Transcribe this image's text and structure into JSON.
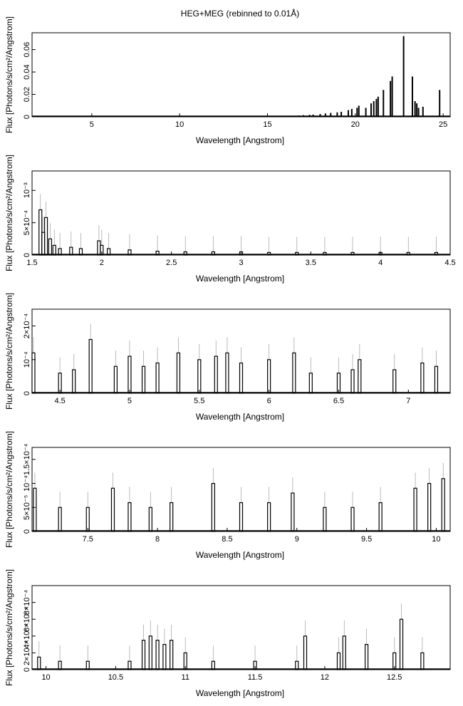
{
  "title": "HEG+MEG (rebinned to 0.01Å)",
  "chart_data": [
    {
      "type": "histogram",
      "xlabel": "Wavelength [Angstrom]",
      "ylabel": "Flux [Photons/s/cm²/Angstrom]",
      "xlim": [
        1.6,
        25.4
      ],
      "ylim": [
        0,
        0.075
      ],
      "x_ticks": [
        {
          "v": 5,
          "label": "5"
        },
        {
          "v": 10,
          "label": "10"
        },
        {
          "v": 15,
          "label": "15"
        },
        {
          "v": 20,
          "label": "20"
        },
        {
          "v": 25,
          "label": "25"
        }
      ],
      "y_ticks": [
        {
          "v": 0,
          "label": "0"
        },
        {
          "v": 0.02,
          "label": "0.02"
        },
        {
          "v": 0.04,
          "label": "0.04"
        },
        {
          "v": 0.06,
          "label": "0.06"
        }
      ],
      "series": [
        {
          "type": "lines",
          "points": [
            [
              15.3,
              0.0006
            ],
            [
              16.0,
              0.0008
            ],
            [
              16.4,
              0.001
            ],
            [
              16.8,
              0.0012
            ],
            [
              17.05,
              0.0015
            ],
            [
              17.4,
              0.0018
            ],
            [
              17.6,
              0.002
            ],
            [
              18.0,
              0.0025
            ],
            [
              18.3,
              0.003
            ],
            [
              18.6,
              0.0035
            ],
            [
              18.97,
              0.004
            ],
            [
              19.2,
              0.0045
            ],
            [
              19.6,
              0.006
            ],
            [
              19.8,
              0.007
            ],
            [
              20.1,
              0.008
            ],
            [
              20.2,
              0.01
            ],
            [
              20.6,
              0.008
            ],
            [
              20.9,
              0.012
            ],
            [
              21.05,
              0.014
            ],
            [
              21.2,
              0.016
            ],
            [
              21.3,
              0.018
            ],
            [
              21.6,
              0.024
            ],
            [
              22.0,
              0.032
            ],
            [
              22.1,
              0.036
            ],
            [
              22.75,
              0.072
            ],
            [
              23.25,
              0.036
            ],
            [
              23.4,
              0.014
            ],
            [
              23.5,
              0.012
            ],
            [
              23.6,
              0.008
            ],
            [
              23.85,
              0.009
            ],
            [
              24.8,
              0.024
            ]
          ]
        }
      ]
    },
    {
      "type": "histogram",
      "xlabel": "Wavelength [Angstrom]",
      "ylabel": "Flux [Photons/s/cm²/Angstrom]",
      "xlim": [
        1.5,
        4.5
      ],
      "ylim": [
        0,
        0.0013
      ],
      "x_ticks": [
        {
          "v": 1.5,
          "label": "1.5"
        },
        {
          "v": 2,
          "label": "2"
        },
        {
          "v": 2.5,
          "label": "2.5"
        },
        {
          "v": 3,
          "label": "3"
        },
        {
          "v": 3.5,
          "label": "3.5"
        },
        {
          "v": 4,
          "label": "4"
        },
        {
          "v": 4.5,
          "label": "4.5"
        }
      ],
      "y_ticks": [
        {
          "v": 0,
          "label": "0"
        },
        {
          "v": 0.0005,
          "label": "5×10⁻⁴"
        },
        {
          "v": 0.001,
          "label": "10⁻³"
        }
      ],
      "series": [
        {
          "type": "bars",
          "points": [
            [
              1.56,
              0.0007
            ],
            [
              1.58,
              0.00035
            ],
            [
              1.6,
              0.00058
            ],
            [
              1.63,
              0.00025
            ],
            [
              1.66,
              0.00015
            ],
            [
              1.7,
              0.0001
            ],
            [
              1.78,
              0.00012
            ],
            [
              1.85,
              0.0001
            ],
            [
              1.98,
              0.00022
            ],
            [
              2.0,
              0.00015
            ],
            [
              2.05,
              0.0001
            ],
            [
              2.2,
              8e-05
            ],
            [
              2.4,
              6e-05
            ],
            [
              2.6,
              5e-05
            ],
            [
              2.8,
              5e-05
            ],
            [
              3.0,
              5e-05
            ],
            [
              3.2,
              4e-05
            ],
            [
              3.4,
              4e-05
            ],
            [
              3.6,
              4e-05
            ],
            [
              3.8,
              4e-05
            ],
            [
              4.0,
              4e-05
            ],
            [
              4.2,
              4e-05
            ],
            [
              4.4,
              4e-05
            ]
          ]
        }
      ]
    },
    {
      "type": "histogram",
      "xlabel": "Wavelength [Angstrom]",
      "ylabel": "Flux [Photons/s/cm²/Angstrom]",
      "xlim": [
        4.3,
        7.3
      ],
      "ylim": [
        0,
        0.00025
      ],
      "x_ticks": [
        {
          "v": 4.5,
          "label": "4.5"
        },
        {
          "v": 5,
          "label": "5"
        },
        {
          "v": 5.5,
          "label": "5.5"
        },
        {
          "v": 6,
          "label": "6"
        },
        {
          "v": 6.5,
          "label": "6.5"
        },
        {
          "v": 7,
          "label": "7"
        }
      ],
      "y_ticks": [
        {
          "v": 0,
          "label": "0"
        },
        {
          "v": 0.0001,
          "label": "10⁻⁴"
        },
        {
          "v": 0.0002,
          "label": "2×10⁻⁴"
        }
      ],
      "series": [
        {
          "type": "bars",
          "points": [
            [
              4.31,
              0.00012
            ],
            [
              4.5,
              6e-05
            ],
            [
              4.6,
              7e-05
            ],
            [
              4.72,
              0.00016
            ],
            [
              4.9,
              8e-05
            ],
            [
              5.0,
              0.00011
            ],
            [
              5.1,
              8e-05
            ],
            [
              5.2,
              9e-05
            ],
            [
              5.35,
              0.00012
            ],
            [
              5.5,
              0.0001
            ],
            [
              5.62,
              0.00011
            ],
            [
              5.7,
              0.00012
            ],
            [
              5.8,
              9e-05
            ],
            [
              6.0,
              0.0001
            ],
            [
              6.18,
              0.00012
            ],
            [
              6.3,
              6e-05
            ],
            [
              6.5,
              6e-05
            ],
            [
              6.6,
              7e-05
            ],
            [
              6.65,
              0.0001
            ],
            [
              6.9,
              7e-05
            ],
            [
              7.1,
              9e-05
            ],
            [
              7.2,
              8e-05
            ]
          ]
        }
      ]
    },
    {
      "type": "histogram",
      "xlabel": "Wavelength [Angstrom]",
      "ylabel": "Flux [Photons/s/cm²/Angstrom]",
      "xlim": [
        7.1,
        10.1
      ],
      "ylim": [
        0,
        0.000175
      ],
      "x_ticks": [
        {
          "v": 7.5,
          "label": "7.5"
        },
        {
          "v": 8,
          "label": "8"
        },
        {
          "v": 8.5,
          "label": "8.5"
        },
        {
          "v": 9,
          "label": "9"
        },
        {
          "v": 9.5,
          "label": "9.5"
        },
        {
          "v": 10,
          "label": "10"
        }
      ],
      "y_ticks": [
        {
          "v": 0,
          "label": "0"
        },
        {
          "v": 5e-05,
          "label": "5×10⁻⁵"
        },
        {
          "v": 0.0001,
          "label": "10⁻⁴"
        },
        {
          "v": 0.00015,
          "label": "1.5×10⁻⁴"
        }
      ],
      "series": [
        {
          "type": "bars",
          "points": [
            [
              7.12,
              9e-05
            ],
            [
              7.3,
              5e-05
            ],
            [
              7.5,
              5e-05
            ],
            [
              7.68,
              9e-05
            ],
            [
              7.8,
              6e-05
            ],
            [
              7.95,
              5e-05
            ],
            [
              8.1,
              6e-05
            ],
            [
              8.4,
              0.0001
            ],
            [
              8.6,
              6e-05
            ],
            [
              8.8,
              6e-05
            ],
            [
              8.97,
              8e-05
            ],
            [
              9.2,
              5e-05
            ],
            [
              9.4,
              5e-05
            ],
            [
              9.6,
              6e-05
            ],
            [
              9.85,
              9e-05
            ],
            [
              9.95,
              0.0001
            ],
            [
              10.05,
              0.00011
            ]
          ]
        }
      ]
    },
    {
      "type": "histogram",
      "xlabel": "Wavelength [Angstrom]",
      "ylabel": "Flux [Photons/s/cm²/Angstrom]",
      "xlim": [
        9.9,
        12.9
      ],
      "ylim": [
        0,
        0.001
      ],
      "x_ticks": [
        {
          "v": 10,
          "label": "10"
        },
        {
          "v": 10.5,
          "label": "10.5"
        },
        {
          "v": 11,
          "label": "11"
        },
        {
          "v": 11.5,
          "label": "11.5"
        },
        {
          "v": 12,
          "label": "12"
        },
        {
          "v": 12.5,
          "label": "12.5"
        }
      ],
      "y_ticks": [
        {
          "v": 0,
          "label": "0"
        },
        {
          "v": 0.0002,
          "label": "2×10⁻⁴"
        },
        {
          "v": 0.0004,
          "label": "4×10⁻⁴"
        },
        {
          "v": 0.0006,
          "label": "6×10⁻⁴"
        },
        {
          "v": 0.0008,
          "label": "8×10⁻⁴"
        }
      ],
      "series": [
        {
          "type": "bars",
          "points": [
            [
              9.95,
              0.00015
            ],
            [
              10.1,
              0.0001
            ],
            [
              10.3,
              0.0001
            ],
            [
              10.6,
              0.0001
            ],
            [
              10.7,
              0.00035
            ],
            [
              10.75,
              0.0004
            ],
            [
              10.8,
              0.00035
            ],
            [
              10.85,
              0.0003
            ],
            [
              10.9,
              0.00035
            ],
            [
              11.0,
              0.0002
            ],
            [
              11.2,
              0.0001
            ],
            [
              11.5,
              0.0001
            ],
            [
              11.8,
              0.0001
            ],
            [
              11.86,
              0.0004
            ],
            [
              12.1,
              0.0002
            ],
            [
              12.14,
              0.0004
            ],
            [
              12.3,
              0.0003
            ],
            [
              12.5,
              0.0002
            ],
            [
              12.55,
              0.0006
            ],
            [
              12.7,
              0.0002
            ]
          ]
        }
      ]
    }
  ]
}
